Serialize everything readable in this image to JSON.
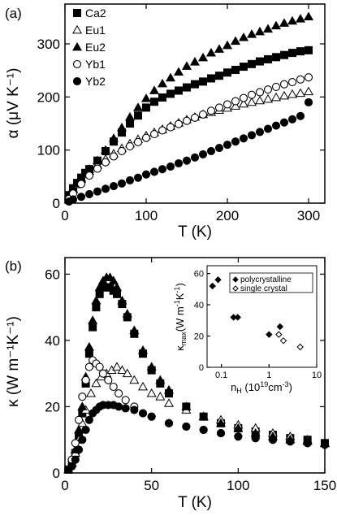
{
  "chart_data": [
    {
      "panel_label": "(a)",
      "type": "scatter",
      "xlabel": "T (K)",
      "ylabel": "α (μV K⁻¹)",
      "xlim": [
        0,
        320
      ],
      "ylim": [
        0,
        375
      ],
      "xticks": [
        0,
        100,
        200,
        300
      ],
      "yticks": [
        0,
        100,
        200,
        300
      ],
      "legend_position": "top-left",
      "series": [
        {
          "name": "Ca2",
          "marker": "square-filled",
          "x": [
            5,
            10,
            15,
            20,
            25,
            30,
            40,
            50,
            60,
            70,
            80,
            90,
            100,
            110,
            120,
            130,
            140,
            150,
            160,
            170,
            180,
            190,
            200,
            210,
            220,
            230,
            240,
            250,
            260,
            270,
            280,
            290,
            300
          ],
          "y": [
            15,
            28,
            38,
            48,
            57,
            64,
            80,
            98,
            116,
            133,
            150,
            165,
            180,
            191,
            199,
            206,
            212,
            218,
            224,
            229,
            235,
            240,
            246,
            251,
            257,
            262,
            267,
            271,
            275,
            279,
            283,
            286,
            288
          ]
        },
        {
          "name": "Eu1",
          "marker": "triangle-open",
          "x": [
            5,
            10,
            15,
            20,
            30,
            40,
            50,
            60,
            70,
            80,
            90,
            100,
            110,
            120,
            130,
            140,
            150,
            160,
            170,
            180,
            190,
            200,
            210,
            220,
            230,
            240,
            250,
            260,
            270,
            280,
            290,
            300
          ],
          "y": [
            12,
            25,
            35,
            45,
            60,
            72,
            83,
            93,
            103,
            112,
            120,
            127,
            133,
            139,
            145,
            151,
            157,
            162,
            167,
            171,
            175,
            179,
            183,
            187,
            190,
            193,
            196,
            199,
            202,
            205,
            207,
            210
          ]
        },
        {
          "name": "Eu2",
          "marker": "triangle-filled",
          "x": [
            5,
            10,
            15,
            20,
            25,
            30,
            40,
            50,
            60,
            70,
            80,
            90,
            100,
            110,
            120,
            130,
            140,
            150,
            160,
            170,
            180,
            190,
            200,
            210,
            220,
            230,
            240,
            250,
            260,
            270,
            280,
            290,
            300
          ],
          "y": [
            15,
            27,
            37,
            47,
            55,
            64,
            80,
            100,
            122,
            142,
            162,
            180,
            197,
            212,
            225,
            236,
            247,
            258,
            266,
            274,
            283,
            290,
            297,
            305,
            312,
            318,
            323,
            328,
            334,
            339,
            343,
            347,
            351
          ]
        },
        {
          "name": "Yb1",
          "marker": "circle-open",
          "x": [
            5,
            10,
            20,
            30,
            40,
            50,
            60,
            70,
            80,
            90,
            100,
            110,
            120,
            130,
            140,
            150,
            160,
            170,
            180,
            190,
            200,
            210,
            220,
            230,
            240,
            250,
            260,
            270,
            280,
            290,
            300
          ],
          "y": [
            8,
            18,
            36,
            52,
            65,
            77,
            88,
            98,
            107,
            115,
            123,
            130,
            137,
            143,
            149,
            155,
            161,
            167,
            174,
            180,
            186,
            192,
            198,
            204,
            209,
            214,
            219,
            224,
            228,
            233,
            237
          ]
        },
        {
          "name": "Yb2",
          "marker": "circle-filled",
          "x": [
            5,
            10,
            20,
            30,
            40,
            50,
            60,
            70,
            80,
            90,
            100,
            110,
            120,
            130,
            140,
            150,
            160,
            170,
            180,
            190,
            200,
            210,
            220,
            230,
            240,
            250,
            260,
            270,
            280,
            290,
            300
          ],
          "y": [
            3,
            7,
            12,
            17,
            22,
            27,
            32,
            37,
            43,
            48,
            54,
            59,
            64,
            69,
            75,
            80,
            86,
            92,
            98,
            104,
            110,
            116,
            122,
            128,
            134,
            140,
            146,
            152,
            158,
            164,
            190
          ]
        }
      ]
    },
    {
      "panel_label": "(b)",
      "type": "scatter",
      "xlabel": "T (K)",
      "ylabel": "κ (W m⁻¹K⁻¹)",
      "xlim": [
        0,
        150
      ],
      "ylim": [
        0,
        65
      ],
      "xticks": [
        0,
        50,
        100,
        150
      ],
      "yticks": [
        0,
        20,
        40,
        60
      ],
      "series": [
        {
          "name": "Ca2",
          "marker": "square-filled",
          "x": [
            2,
            4,
            6,
            8,
            10,
            12,
            14,
            16,
            18,
            20,
            22,
            24,
            26,
            28,
            30,
            33,
            36,
            40,
            45,
            50,
            55,
            60,
            70,
            80,
            90,
            100,
            110,
            120,
            130,
            140,
            150
          ],
          "y": [
            1,
            3,
            6,
            11,
            18,
            27,
            36,
            44,
            50,
            54,
            56,
            56,
            56,
            55,
            54,
            51,
            47,
            42,
            36,
            31,
            27,
            24,
            20,
            17,
            15,
            13.5,
            12.5,
            11.5,
            10.5,
            10,
            9
          ]
        },
        {
          "name": "Eu1",
          "marker": "triangle-open",
          "x": [
            2,
            4,
            6,
            8,
            10,
            12,
            15,
            18,
            21,
            24,
            27,
            30,
            33,
            36,
            40,
            45,
            50,
            55,
            60,
            70,
            80,
            90,
            100,
            110,
            120,
            130,
            140,
            150
          ],
          "y": [
            1,
            3,
            6,
            10,
            15,
            19,
            24,
            27,
            29,
            30,
            31,
            32,
            31,
            30,
            28,
            26,
            24,
            23,
            21,
            19,
            17,
            16,
            14.5,
            13.5,
            12,
            11,
            10,
            9
          ]
        },
        {
          "name": "Eu2",
          "marker": "triangle-filled",
          "x": [
            2,
            4,
            6,
            8,
            10,
            12,
            14,
            16,
            18,
            20,
            22,
            24,
            26,
            28,
            30,
            33,
            36,
            40,
            45,
            50,
            55,
            60,
            70,
            80,
            90,
            100,
            110,
            120,
            130,
            140,
            150
          ],
          "y": [
            1,
            3,
            7,
            13,
            20,
            29,
            38,
            46,
            52,
            56,
            58,
            59,
            59,
            58,
            56,
            52,
            48,
            43,
            37,
            32,
            28,
            25,
            20,
            17,
            15,
            13.5,
            12,
            11,
            10,
            9.5,
            9
          ]
        },
        {
          "name": "Yb1",
          "marker": "circle-open",
          "x": [
            2,
            4,
            6,
            8,
            10,
            12,
            14,
            16,
            18,
            20,
            22,
            25,
            28,
            31,
            35,
            40,
            45,
            50,
            60,
            70,
            80,
            90,
            100,
            110,
            120,
            130,
            140,
            150
          ],
          "y": [
            1,
            4,
            9,
            16,
            23,
            28,
            32,
            34,
            33,
            32,
            30,
            28,
            26,
            24,
            22,
            20,
            18,
            17,
            15,
            14,
            13,
            12,
            11,
            10.5,
            10,
            9.5,
            9,
            8.5
          ]
        },
        {
          "name": "Yb2",
          "marker": "circle-filled",
          "x": [
            2,
            4,
            6,
            8,
            10,
            12,
            14,
            16,
            18,
            20,
            22,
            25,
            28,
            31,
            35,
            40,
            45,
            50,
            60,
            70,
            80,
            90,
            100,
            110,
            120,
            130,
            140,
            150
          ],
          "y": [
            1,
            2,
            4,
            7,
            10,
            13,
            16,
            18,
            19,
            20,
            20.5,
            20.5,
            20.5,
            20,
            19.5,
            19,
            18,
            17,
            15,
            14,
            13,
            12,
            11,
            10.5,
            10,
            9.5,
            9,
            8.5
          ]
        }
      ],
      "inset": {
        "type": "scatter",
        "xscale": "log",
        "xlabel": "n_H (10^19 cm^-3)",
        "ylabel": "κ_max (W m^-1 K^-1)",
        "xlim": [
          0.05,
          10
        ],
        "ylim": [
          0,
          65
        ],
        "xticks": [
          0.1,
          1,
          10
        ],
        "xtick_labels": [
          "0.1",
          "1",
          "10"
        ],
        "yticks": [
          0,
          20,
          40,
          60
        ],
        "legend": [
          "polycrystalline",
          "single crystal"
        ],
        "polycrystalline": {
          "x": [
            0.065,
            0.085,
            0.18,
            0.22,
            1.0,
            1.7
          ],
          "y": [
            52,
            56,
            32,
            32,
            21,
            26
          ]
        },
        "single_crystal": {
          "x": [
            1.6,
            2.0,
            4.5
          ],
          "y": [
            21,
            17,
            13
          ]
        }
      }
    }
  ]
}
